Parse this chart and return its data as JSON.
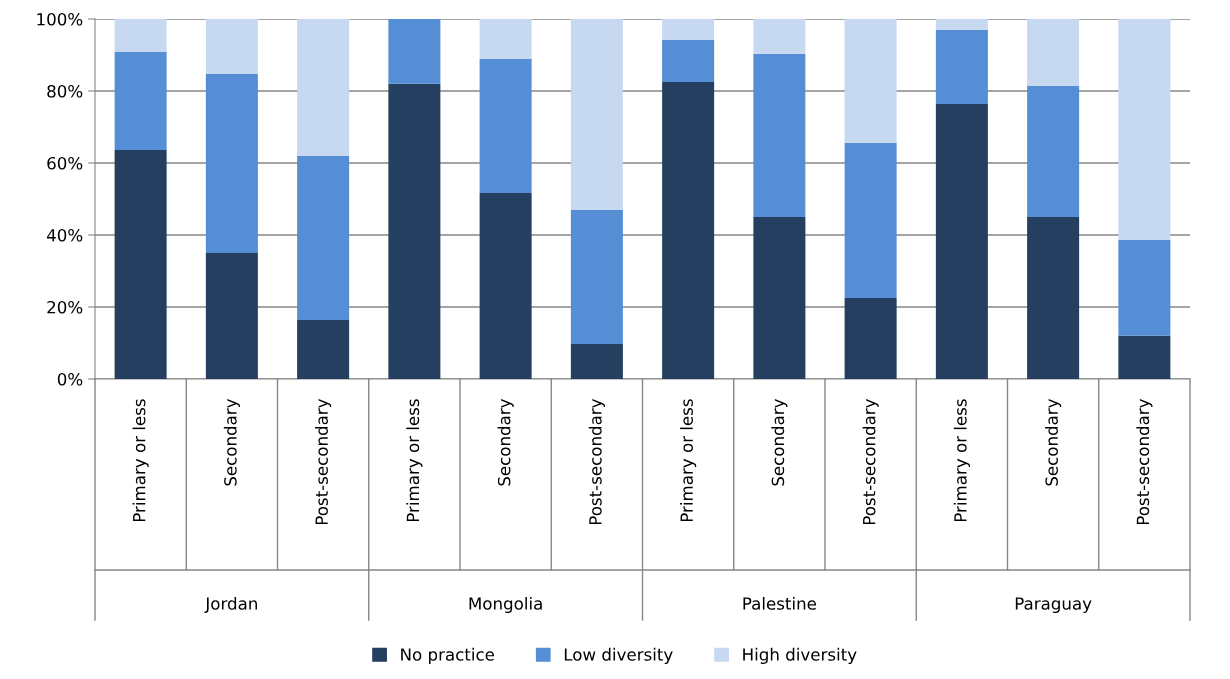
{
  "chart_data": {
    "type": "bar",
    "stacked": true,
    "categories": [
      "Primary or less",
      "Secondary",
      "Post-secondary",
      "Primary or less",
      "Secondary",
      "Post-secondary",
      "Primary or less",
      "Secondary",
      "Post-secondary",
      "Primary or less",
      "Secondary",
      "Post-secondary"
    ],
    "annotations": [
      "Jordan",
      "Mongolia",
      "Palestine",
      "Paraguay"
    ],
    "series": [
      {
        "name": "No practice",
        "color": "#243f60",
        "values": [
          63.6,
          35,
          16.4,
          82,
          51.7,
          9.7,
          82.5,
          45,
          22.5,
          76.4,
          45,
          12
        ]
      },
      {
        "name": "Low diversity",
        "color": "#558ed5",
        "values": [
          27.2,
          49.7,
          45.6,
          18,
          37.2,
          37.3,
          11.7,
          45.3,
          43.1,
          20.6,
          36.4,
          26.6
        ]
      },
      {
        "name": "High diversity",
        "color": "#c6d9f1",
        "values": [
          9.2,
          15.3,
          38,
          null,
          11.1,
          53,
          5.8,
          9.7,
          34.4,
          3,
          18.6,
          61.4
        ]
      }
    ],
    "ylim": [
      0,
      100
    ],
    "yticks": [
      {
        "value": 0,
        "label": "0%"
      },
      {
        "value": 20,
        "label": "20%"
      },
      {
        "value": 40,
        "label": "40%"
      },
      {
        "value": 60,
        "label": "60%"
      },
      {
        "value": 80,
        "label": "80%"
      },
      {
        "value": 100,
        "label": "100%"
      }
    ],
    "grid": "y",
    "legend": "bottom"
  }
}
